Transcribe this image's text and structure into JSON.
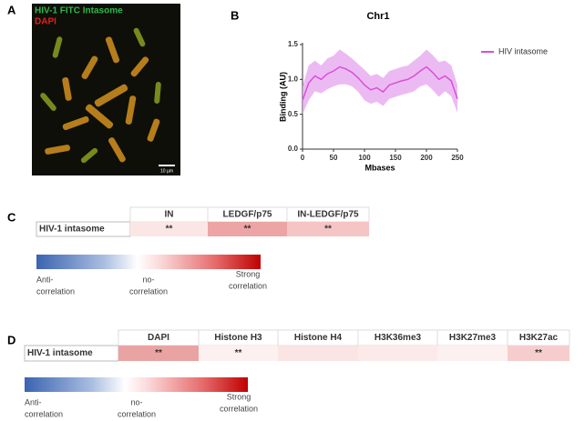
{
  "panel_a": {
    "label": "A",
    "channels": [
      {
        "name": "HIV-1 FITC Intasome",
        "color": "#2fb84a"
      },
      {
        "name": "DAPI",
        "color": "#e02020"
      }
    ],
    "scale_bar": "10 µm"
  },
  "chart_data": {
    "type": "line",
    "panel_label": "B",
    "title": "Chr1",
    "x_label": "Mbases",
    "y_label": "Binding (AU)",
    "x": [
      0,
      10,
      20,
      30,
      40,
      50,
      60,
      70,
      80,
      90,
      100,
      110,
      120,
      130,
      140,
      150,
      160,
      170,
      180,
      190,
      200,
      210,
      220,
      230,
      240,
      250
    ],
    "series": [
      {
        "name": "HIV intasome",
        "color": "#d94fd9",
        "band_color": "#e6a3ee",
        "values": [
          0.7,
          0.95,
          1.05,
          1.0,
          1.08,
          1.12,
          1.18,
          1.15,
          1.1,
          1.02,
          0.92,
          0.85,
          0.88,
          0.82,
          0.92,
          0.95,
          0.98,
          1.0,
          1.05,
          1.12,
          1.18,
          1.1,
          1.0,
          1.05,
          0.98,
          0.72
        ],
        "errors": [
          0.2,
          0.25,
          0.22,
          0.2,
          0.22,
          0.22,
          0.25,
          0.22,
          0.2,
          0.2,
          0.22,
          0.2,
          0.2,
          0.2,
          0.2,
          0.2,
          0.2,
          0.2,
          0.22,
          0.22,
          0.25,
          0.25,
          0.25,
          0.22,
          0.22,
          0.2
        ]
      }
    ],
    "xlim": [
      0,
      250
    ],
    "ylim": [
      0,
      1.5
    ],
    "xticks": [
      0,
      50,
      100,
      150,
      200,
      250
    ],
    "yticks": [
      {
        "value": 0,
        "label": "0.0"
      },
      {
        "value": 0.5,
        "label": "0.5"
      },
      {
        "value": 1,
        "label": "1.0"
      },
      {
        "value": 1.5,
        "label": "1.5"
      }
    ],
    "legend": "right"
  },
  "panel_c": {
    "label": "C",
    "columns": [
      "IN",
      "LEDGF/p75",
      "IN-LEDGF/p75"
    ],
    "row_label": "HIV-1 intasome",
    "cells": [
      {
        "text": "**",
        "color": "#fbe6e6"
      },
      {
        "text": "**",
        "color": "#eda4a4"
      },
      {
        "text": "**",
        "color": "#f5c4c4"
      }
    ],
    "scale": {
      "low": [
        "Anti-",
        "correlation"
      ],
      "mid": [
        "no-",
        "correlation"
      ],
      "high": [
        "Strong",
        "correlation"
      ]
    }
  },
  "panel_d": {
    "label": "D",
    "columns": [
      "DAPI",
      "Histone H3",
      "Histone H4",
      "H3K36me3",
      "H3K27me3",
      "H3K27ac"
    ],
    "row_label": "HIV-1 intasome",
    "cells": [
      {
        "text": "**",
        "color": "#eaa3a3"
      },
      {
        "text": "**",
        "color": "#fdf0f0"
      },
      {
        "color": "#fbe4e4"
      },
      {
        "color": "#fce9e9"
      },
      {
        "color": "#fdf0f0"
      },
      {
        "text": "**",
        "color": "#f6cdcd"
      }
    ],
    "scale": {
      "low": [
        "Anti-",
        "correlation"
      ],
      "mid": [
        "no-",
        "correlation"
      ],
      "high": [
        "Strong",
        "correlation"
      ]
    }
  }
}
